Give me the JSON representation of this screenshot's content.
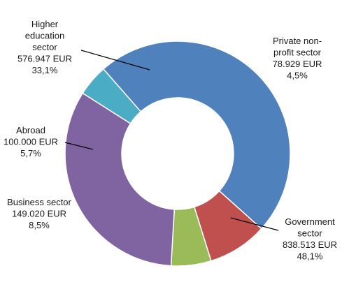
{
  "chart_data": {
    "type": "donut",
    "title": "",
    "unit": "EUR",
    "slices": [
      {
        "label_lines": [
          "Private non-",
          "profit sector"
        ],
        "value": 78929,
        "value_text": "78.929 EUR",
        "percent": 4.5,
        "percent_text": "4,5%",
        "color": "#4bacc6"
      },
      {
        "label_lines": [
          "Government",
          "sector"
        ],
        "value": 838513,
        "value_text": "838.513 EUR",
        "percent": 48.1,
        "percent_text": "48,1%",
        "color": "#4f81bd"
      },
      {
        "label_lines": [
          "Business sector"
        ],
        "value": 149020,
        "value_text": "149.020 EUR",
        "percent": 8.5,
        "percent_text": "8,5%",
        "color": "#c0504d"
      },
      {
        "label_lines": [
          "Abroad"
        ],
        "value": 100000,
        "value_text": "100.000 EUR",
        "percent": 5.7,
        "percent_text": "5,7%",
        "color": "#9bbb59"
      },
      {
        "label_lines": [
          "Higher",
          "education",
          "sector"
        ],
        "value": 576947,
        "value_text": "576.947 EUR",
        "percent": 33.1,
        "percent_text": "33,1%",
        "color": "#8064a2"
      }
    ]
  }
}
